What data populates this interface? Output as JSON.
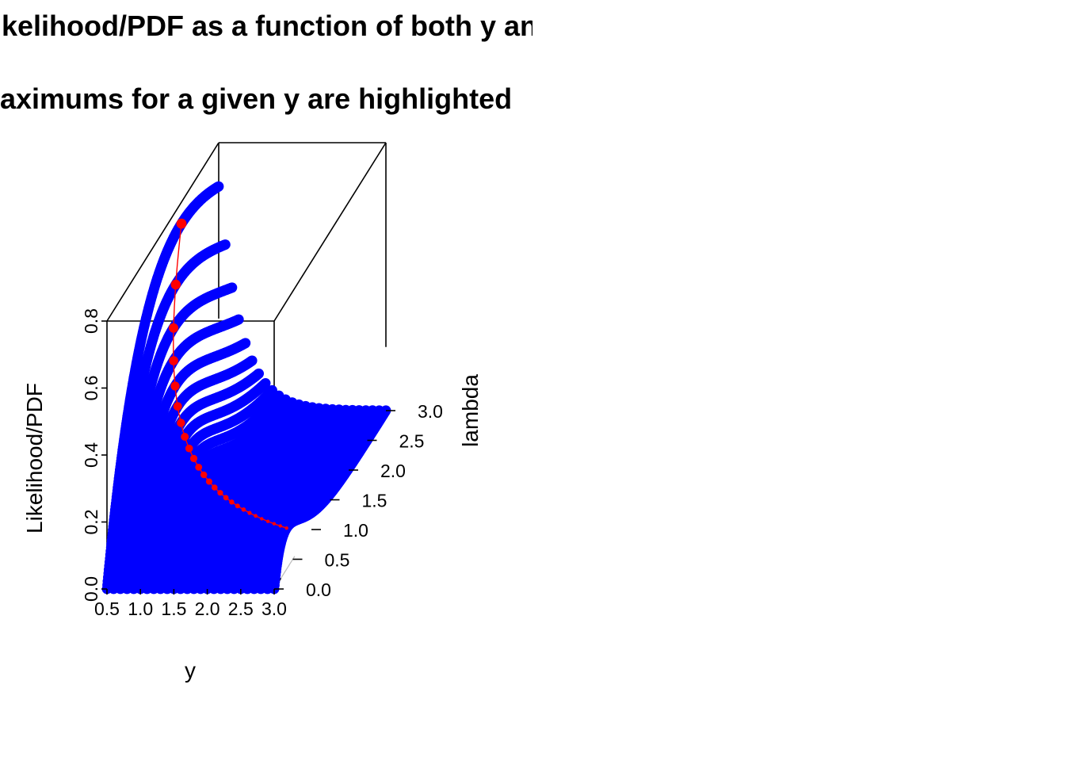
{
  "titles": {
    "line1": "Likelihood/PDF as a function of both y and lambda",
    "line2": "Maximums for a given y are highlighted"
  },
  "chart_data": {
    "type": "scatter3d",
    "function": "lambda * exp(-lambda * y)",
    "xlabel": "y",
    "ylabel": "lambda",
    "zlabel": "Likelihood/PDF",
    "x_ticks": [
      "0.5",
      "1.0",
      "1.5",
      "2.0",
      "2.5",
      "3.0"
    ],
    "y_ticks": [
      "0.0",
      "0.5",
      "1.0",
      "1.5",
      "2.0",
      "2.5",
      "3.0"
    ],
    "z_ticks": [
      "0.0",
      "0.2",
      "0.4",
      "0.6",
      "0.8"
    ],
    "xlim": [
      0.5,
      3.0
    ],
    "ylim": [
      0.0,
      3.0
    ],
    "zlim": [
      0.0,
      0.8
    ],
    "y_values": [
      0.5,
      0.6,
      0.7,
      0.8,
      0.9,
      1.0,
      1.1,
      1.2,
      1.3,
      1.4,
      1.5,
      1.6,
      1.7,
      1.8,
      1.9,
      2.0,
      2.1,
      2.2,
      2.3,
      2.4,
      2.5,
      2.6,
      2.7,
      2.8,
      2.9,
      3.0
    ],
    "lambda_range": [
      0.0,
      3.0
    ],
    "lambda_step": 0.01,
    "series": [
      {
        "color": "#0000ff"
      },
      {
        "color": "#ff0000"
      }
    ]
  }
}
